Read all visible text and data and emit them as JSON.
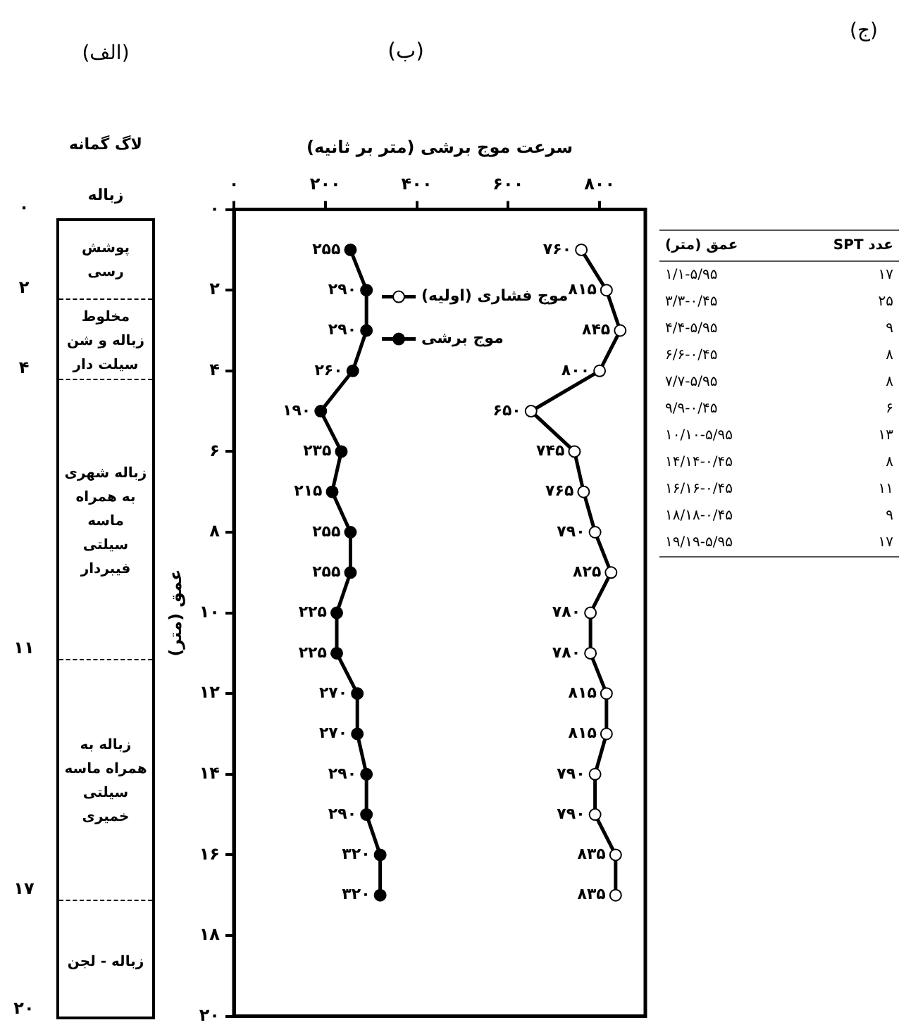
{
  "chart_data": [
    {
      "type": "other",
      "title": "(الف)",
      "subtitle": "لاگ گمانه",
      "xlabel": "زباله",
      "categories": [
        "پوشش رسی",
        "مخلوط زباله و شن سیلت دار",
        "زباله شهری به همراه ماسه سیلتی فیبردار",
        "زباله به همراه ماسه سیلتی خمیری",
        "زباله - لجن"
      ],
      "values": [
        2,
        4,
        11,
        17,
        20
      ],
      "value_labels": [
        "۲",
        "۴",
        "۱۱",
        "۱۷",
        "۲۰"
      ],
      "annotations": [
        "۰"
      ]
    },
    {
      "type": "line",
      "orientation": "horizontal",
      "title": "(ب)",
      "xlabel": "سرعت موج برشی (متر بر ثانیه)",
      "ylabel": "عمق (متر)",
      "marker": "circle",
      "legend": "top",
      "xlim": [
        0,
        900
      ],
      "xticks": [
        {
          "value": 0,
          "label": "۰"
        },
        {
          "value": 200,
          "label": "۲۰۰"
        },
        {
          "value": 400,
          "label": "۴۰۰"
        },
        {
          "value": 600,
          "label": "۶۰۰"
        },
        {
          "value": 800,
          "label": "۸۰۰"
        }
      ],
      "ylim": [
        20,
        0
      ],
      "yticks": [
        {
          "value": 0,
          "label": "۰"
        },
        {
          "value": 2,
          "label": "۲"
        },
        {
          "value": 4,
          "label": "۴"
        },
        {
          "value": 6,
          "label": "۶"
        },
        {
          "value": 8,
          "label": "۸"
        },
        {
          "value": 10,
          "label": "۱۰"
        },
        {
          "value": 12,
          "label": "۱۲"
        },
        {
          "value": 14,
          "label": "۱۴"
        },
        {
          "value": 16,
          "label": "۱۶"
        },
        {
          "value": 18,
          "label": "۱۸"
        },
        {
          "value": 20,
          "label": "۲۰"
        }
      ],
      "series": [
        {
          "name": "موج فشاری (اولیه)",
          "color": "#000000",
          "x": [
            1,
            2,
            3,
            4,
            5,
            6,
            7,
            8,
            9,
            10,
            11,
            12,
            13,
            14,
            15,
            16,
            17
          ],
          "values": [
            760,
            815,
            845,
            800,
            650,
            745,
            765,
            790,
            825,
            780,
            780,
            815,
            815,
            790,
            790,
            835,
            835
          ],
          "value_labels": [
            "۷۶۰",
            "۸۱۵",
            "۸۴۵",
            "۸۰۰",
            "۶۵۰",
            "۷۴۵",
            "۷۶۵",
            "۷۹۰",
            "۸۲۵",
            "۷۸۰",
            "۷۸۰",
            "۸۱۵",
            "۸۱۵",
            "۷۹۰",
            "۷۹۰",
            "۸۳۵",
            "۸۳۵"
          ]
        },
        {
          "name": "موج برشی",
          "color": "#000000",
          "x": [
            1,
            2,
            3,
            4,
            5,
            6,
            7,
            8,
            9,
            10,
            11,
            12,
            13,
            14,
            15,
            16,
            17
          ],
          "values": [
            255,
            290,
            290,
            260,
            190,
            235,
            215,
            255,
            255,
            225,
            225,
            270,
            270,
            290,
            290,
            320,
            320
          ],
          "value_labels": [
            "۲۵۵",
            "۲۹۰",
            "۲۹۰",
            "۲۶۰",
            "۱۹۰",
            "۲۳۵",
            "۲۱۵",
            "۲۵۵",
            "۲۵۵",
            "۲۲۵",
            "۲۲۵",
            "۲۷۰",
            "۲۷۰",
            "۲۹۰",
            "۲۹۰",
            "۳۲۰",
            "۳۲۰"
          ]
        }
      ]
    },
    {
      "type": "other",
      "title": "(ج)",
      "categories": [
        "عمق (متر)",
        "عدد SPT"
      ],
      "cell_labels": [
        [
          "۱/۱-۵/۹۵",
          "۱۷"
        ],
        [
          "۳/۳-۰/۴۵",
          "۲۵"
        ],
        [
          "۴/۴-۵/۹۵",
          "۹"
        ],
        [
          "۶/۶-۰/۴۵",
          "۸"
        ],
        [
          "۷/۷-۵/۹۵",
          "۸"
        ],
        [
          "۹/۹-۰/۴۵",
          "۶"
        ],
        [
          "۱۰/۱۰-۵/۹۵",
          "۱۳"
        ],
        [
          "۱۴/۱۴-۰/۴۵",
          "۸"
        ],
        [
          "۱۶/۱۶-۰/۴۵",
          "۱۱"
        ],
        [
          "۱۸/۱۸-۰/۴۵",
          "۹"
        ],
        [
          "۱۹/۱۹-۵/۹۵",
          "۱۷"
        ]
      ]
    }
  ]
}
